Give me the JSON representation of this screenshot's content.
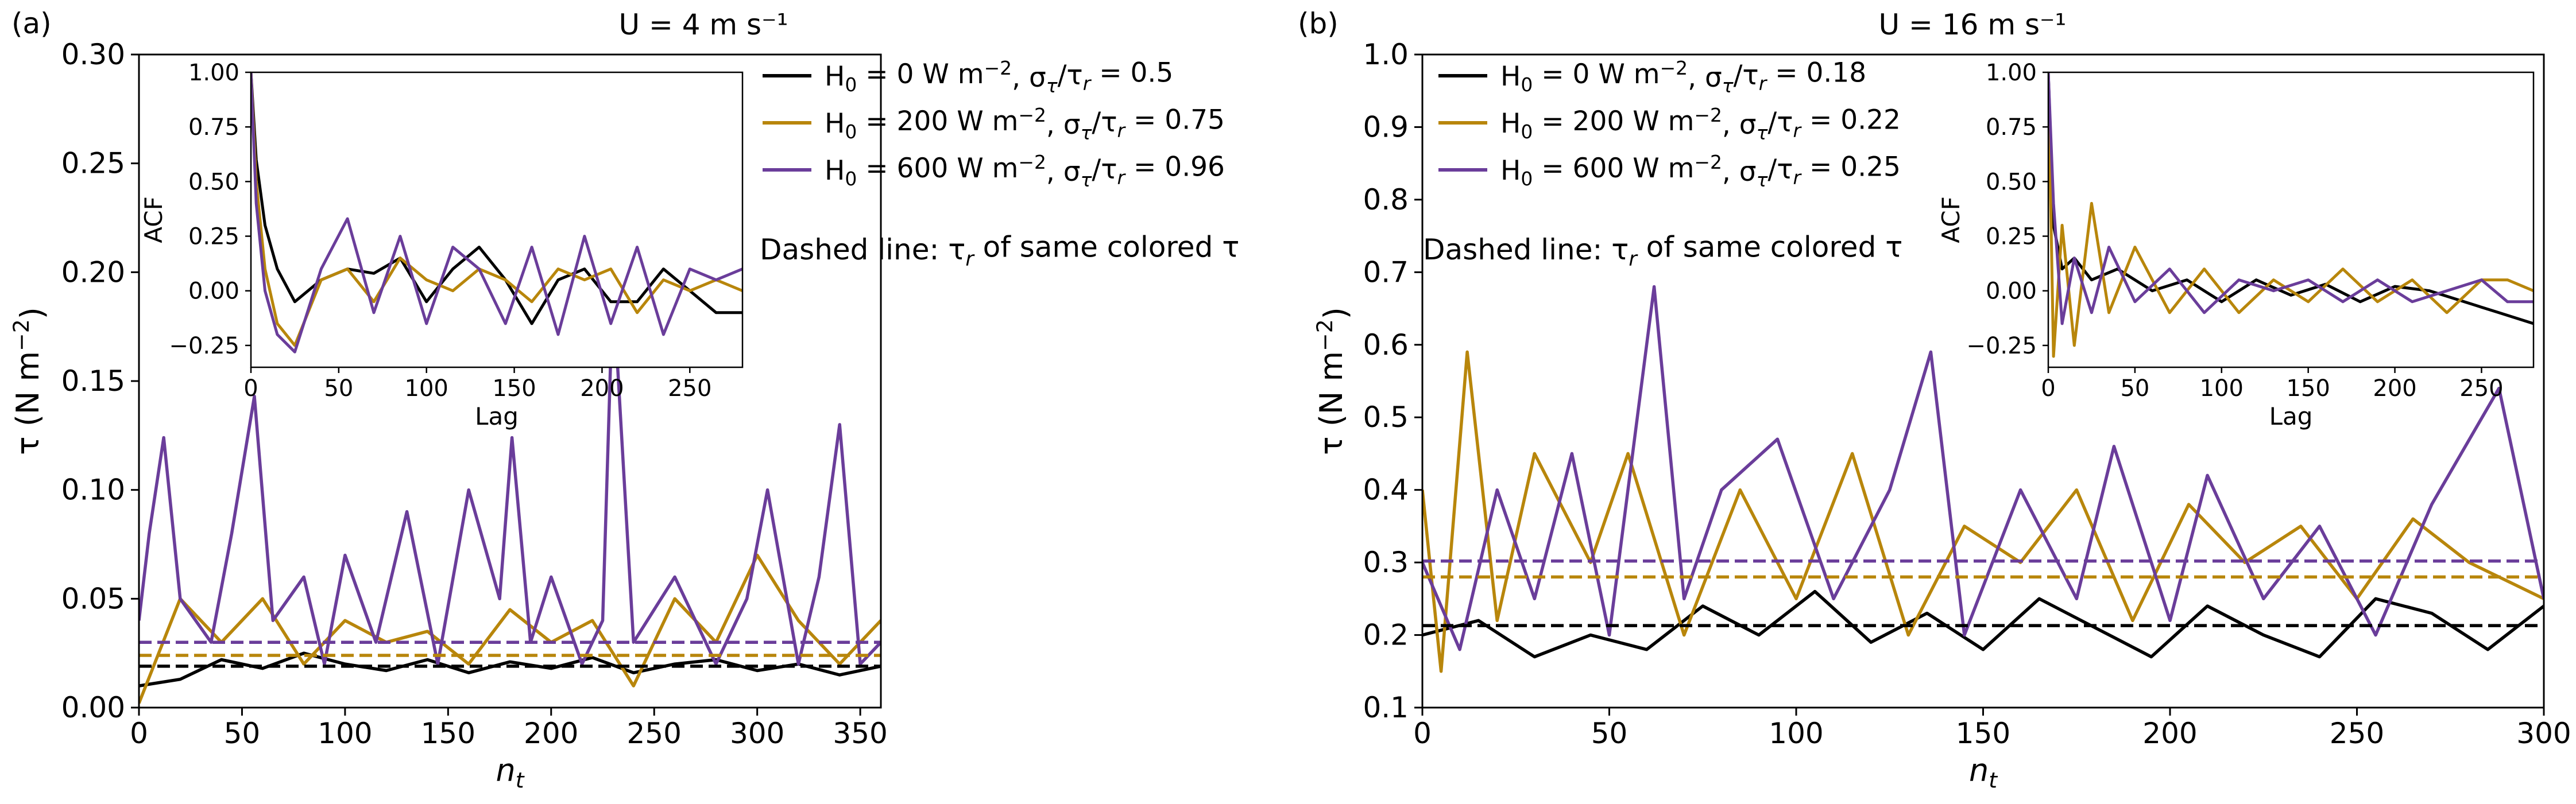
{
  "figure": {
    "note_symbol": "τ",
    "panels": [
      {
        "letter": "(a)",
        "title": "U = 4 m s⁻¹",
        "xlabel": "n_t",
        "ylabel": "τ (N m⁻²)",
        "annotation": "Dashed line: τ_r of same colored τ",
        "xticks": [
          "0",
          "50",
          "100",
          "150",
          "200",
          "250",
          "300",
          "350"
        ],
        "yticks": [
          "0.00",
          "0.05",
          "0.10",
          "0.15",
          "0.20",
          "0.25",
          "0.30"
        ],
        "legend": [
          "H₀ = 0 W m⁻², σ_τ/τ_r = 0.5",
          "H₀ = 200 W m⁻², σ_τ/τ_r = 0.75",
          "H₀ = 600 W m⁻², σ_τ/τ_r = 0.96"
        ],
        "inset": {
          "xlabel": "Lag",
          "ylabel": "ACF",
          "xticks": [
            "0",
            "50",
            "100",
            "150",
            "200",
            "250"
          ],
          "yticks": [
            "−0.25",
            "0.00",
            "0.25",
            "0.50",
            "0.75",
            "1.00"
          ]
        }
      },
      {
        "letter": "(b)",
        "title": "U = 16 m s⁻¹",
        "xlabel": "n_t",
        "ylabel": "τ (N m⁻²)",
        "annotation": "Dashed line: τ_r of same colored τ",
        "xticks": [
          "0",
          "50",
          "100",
          "150",
          "200",
          "250",
          "300"
        ],
        "yticks": [
          "0.1",
          "0.2",
          "0.3",
          "0.4",
          "0.5",
          "0.6",
          "0.7",
          "0.8",
          "0.9",
          "1.0"
        ],
        "legend": [
          "H₀ = 0 W m⁻², σ_τ/τ_r = 0.18",
          "H₀ = 200 W m⁻², σ_τ/τ_r = 0.22",
          "H₀ = 600 W m⁻², σ_τ/τ_r = 0.25"
        ],
        "inset": {
          "xlabel": "Lag",
          "ylabel": "ACF",
          "xticks": [
            "0",
            "50",
            "100",
            "150",
            "200",
            "250"
          ],
          "yticks": [
            "−0.25",
            "0.00",
            "0.25",
            "0.50",
            "0.75",
            "1.00"
          ]
        }
      }
    ]
  },
  "chart_data": [
    {
      "type": "line",
      "title": "U = 4 m s⁻¹",
      "xlabel": "n_t",
      "ylabel": "τ (N m⁻²)",
      "xlim": [
        0,
        360
      ],
      "ylim": [
        0,
        0.3
      ],
      "colors": [
        "#000000",
        "#b8860b",
        "#6a3d9a"
      ],
      "series": [
        {
          "name": "H₀ = 0 W m⁻², σ_τ/τ_r = 0.5",
          "ref": 0.019,
          "x": [
            0,
            20,
            40,
            60,
            80,
            100,
            120,
            140,
            160,
            180,
            200,
            220,
            240,
            260,
            280,
            300,
            320,
            340,
            360
          ],
          "values": [
            0.01,
            0.013,
            0.022,
            0.018,
            0.025,
            0.02,
            0.017,
            0.022,
            0.016,
            0.021,
            0.018,
            0.023,
            0.016,
            0.02,
            0.022,
            0.017,
            0.02,
            0.015,
            0.019
          ]
        },
        {
          "name": "H₀ = 200 W m⁻², σ_τ/τ_r = 0.75",
          "ref": 0.024,
          "x": [
            0,
            20,
            40,
            60,
            80,
            100,
            120,
            140,
            160,
            180,
            200,
            220,
            240,
            260,
            280,
            300,
            320,
            340,
            360
          ],
          "values": [
            0.002,
            0.05,
            0.03,
            0.05,
            0.02,
            0.04,
            0.03,
            0.035,
            0.02,
            0.045,
            0.03,
            0.04,
            0.01,
            0.05,
            0.03,
            0.07,
            0.04,
            0.02,
            0.04
          ]
        },
        {
          "name": "H₀ = 600 W m⁻², σ_τ/τ_r = 0.96",
          "ref": 0.03,
          "x": [
            0,
            5,
            12,
            20,
            35,
            45,
            56,
            65,
            80,
            90,
            100,
            115,
            130,
            145,
            160,
            175,
            181,
            190,
            200,
            215,
            225,
            230,
            240,
            260,
            280,
            295,
            305,
            320,
            330,
            340,
            350,
            360
          ],
          "values": [
            0.04,
            0.08,
            0.124,
            0.05,
            0.03,
            0.08,
            0.143,
            0.04,
            0.06,
            0.02,
            0.07,
            0.03,
            0.09,
            0.02,
            0.1,
            0.05,
            0.124,
            0.03,
            0.06,
            0.02,
            0.04,
            0.194,
            0.03,
            0.06,
            0.02,
            0.05,
            0.1,
            0.02,
            0.06,
            0.13,
            0.02,
            0.03
          ]
        }
      ],
      "inset": {
        "xlabel": "Lag",
        "ylabel": "ACF",
        "xlim": [
          0,
          280
        ],
        "ylim": [
          -0.35,
          1.0
        ],
        "series": [
          {
            "name": "H₀ = 0",
            "x": [
              0,
              3,
              8,
              15,
              25,
              40,
              55,
              70,
              85,
              100,
              115,
              130,
              145,
              160,
              175,
              190,
              205,
              220,
              235,
              250,
              265,
              280
            ],
            "values": [
              1.0,
              0.6,
              0.3,
              0.1,
              -0.05,
              0.05,
              0.1,
              0.08,
              0.15,
              -0.05,
              0.1,
              0.2,
              0.05,
              -0.15,
              0.05,
              0.1,
              -0.05,
              -0.05,
              0.1,
              0.0,
              -0.1,
              -0.1
            ]
          },
          {
            "name": "H₀ = 200",
            "x": [
              0,
              3,
              8,
              15,
              25,
              40,
              55,
              70,
              85,
              100,
              115,
              130,
              145,
              160,
              175,
              190,
              205,
              220,
              235,
              250,
              265,
              280
            ],
            "values": [
              1.0,
              0.5,
              0.1,
              -0.15,
              -0.25,
              0.05,
              0.1,
              -0.05,
              0.15,
              0.05,
              0.0,
              0.1,
              0.05,
              -0.05,
              0.1,
              0.05,
              0.1,
              -0.1,
              0.05,
              0.0,
              0.05,
              0.0
            ]
          },
          {
            "name": "H₀ = 600",
            "x": [
              0,
              3,
              8,
              15,
              25,
              40,
              55,
              70,
              85,
              100,
              115,
              130,
              145,
              160,
              175,
              190,
              205,
              220,
              235,
              250,
              265,
              280
            ],
            "values": [
              1.0,
              0.4,
              0.0,
              -0.2,
              -0.28,
              0.1,
              0.33,
              -0.1,
              0.25,
              -0.15,
              0.2,
              0.1,
              -0.15,
              0.2,
              -0.2,
              0.25,
              -0.15,
              0.2,
              -0.2,
              0.1,
              0.05,
              0.1
            ]
          }
        ]
      }
    },
    {
      "type": "line",
      "title": "U = 16 m s⁻¹",
      "xlabel": "n_t",
      "ylabel": "τ (N m⁻²)",
      "xlim": [
        0,
        300
      ],
      "ylim": [
        0.1,
        1.0
      ],
      "colors": [
        "#000000",
        "#b8860b",
        "#6a3d9a"
      ],
      "series": [
        {
          "name": "H₀ = 0 W m⁻², σ_τ/τ_r = 0.18",
          "ref": 0.213,
          "x": [
            0,
            15,
            30,
            45,
            60,
            75,
            90,
            105,
            120,
            135,
            150,
            165,
            180,
            195,
            210,
            225,
            240,
            255,
            270,
            285,
            300
          ],
          "values": [
            0.2,
            0.22,
            0.17,
            0.2,
            0.18,
            0.24,
            0.2,
            0.26,
            0.19,
            0.23,
            0.18,
            0.25,
            0.21,
            0.17,
            0.24,
            0.2,
            0.17,
            0.25,
            0.23,
            0.18,
            0.24
          ]
        },
        {
          "name": "H₀ = 200 W m⁻², σ_τ/τ_r = 0.22",
          "ref": 0.28,
          "x": [
            0,
            5,
            12,
            20,
            30,
            45,
            55,
            70,
            85,
            100,
            115,
            130,
            145,
            160,
            175,
            190,
            205,
            220,
            235,
            250,
            265,
            280,
            300
          ],
          "values": [
            0.4,
            0.15,
            0.59,
            0.22,
            0.45,
            0.3,
            0.45,
            0.2,
            0.4,
            0.25,
            0.45,
            0.2,
            0.35,
            0.3,
            0.4,
            0.22,
            0.38,
            0.3,
            0.35,
            0.25,
            0.36,
            0.3,
            0.25
          ]
        },
        {
          "name": "H₀ = 600 W m⁻², σ_τ/τ_r = 0.25",
          "ref": 0.302,
          "x": [
            0,
            10,
            20,
            30,
            40,
            50,
            62,
            70,
            80,
            95,
            110,
            125,
            136,
            145,
            160,
            175,
            185,
            200,
            210,
            225,
            240,
            255,
            270,
            288,
            300
          ],
          "values": [
            0.3,
            0.18,
            0.4,
            0.25,
            0.45,
            0.2,
            0.68,
            0.25,
            0.4,
            0.47,
            0.25,
            0.4,
            0.59,
            0.2,
            0.4,
            0.25,
            0.46,
            0.22,
            0.42,
            0.25,
            0.35,
            0.2,
            0.38,
            0.54,
            0.25
          ]
        }
      ],
      "inset": {
        "xlabel": "Lag",
        "ylabel": "ACF",
        "xlim": [
          0,
          280
        ],
        "ylim": [
          -0.35,
          1.0
        ],
        "series": [
          {
            "name": "H₀ = 0",
            "x": [
              0,
              3,
              8,
              15,
              25,
              40,
              60,
              80,
              100,
              120,
              140,
              160,
              180,
              200,
              220,
              240,
              260,
              280
            ],
            "values": [
              1.0,
              0.3,
              0.1,
              0.15,
              0.05,
              0.1,
              0.0,
              0.05,
              -0.05,
              0.05,
              -0.02,
              0.03,
              -0.05,
              0.02,
              0.0,
              -0.05,
              -0.1,
              -0.15
            ]
          },
          {
            "name": "H₀ = 200",
            "x": [
              0,
              3,
              8,
              15,
              25,
              35,
              50,
              70,
              90,
              110,
              130,
              150,
              170,
              190,
              210,
              230,
              250,
              265,
              280
            ],
            "values": [
              1.0,
              -0.3,
              0.3,
              -0.25,
              0.4,
              -0.1,
              0.2,
              -0.1,
              0.1,
              -0.1,
              0.05,
              -0.05,
              0.1,
              -0.05,
              0.05,
              -0.1,
              0.05,
              0.05,
              0.0
            ]
          },
          {
            "name": "H₀ = 600",
            "x": [
              0,
              3,
              8,
              15,
              25,
              35,
              50,
              70,
              90,
              110,
              130,
              150,
              170,
              190,
              210,
              230,
              250,
              265,
              280
            ],
            "values": [
              1.0,
              0.4,
              -0.15,
              0.15,
              -0.1,
              0.2,
              -0.05,
              0.1,
              -0.1,
              0.05,
              0.0,
              0.05,
              -0.05,
              0.05,
              -0.05,
              0.0,
              0.05,
              -0.05,
              -0.05
            ]
          }
        ]
      }
    }
  ]
}
